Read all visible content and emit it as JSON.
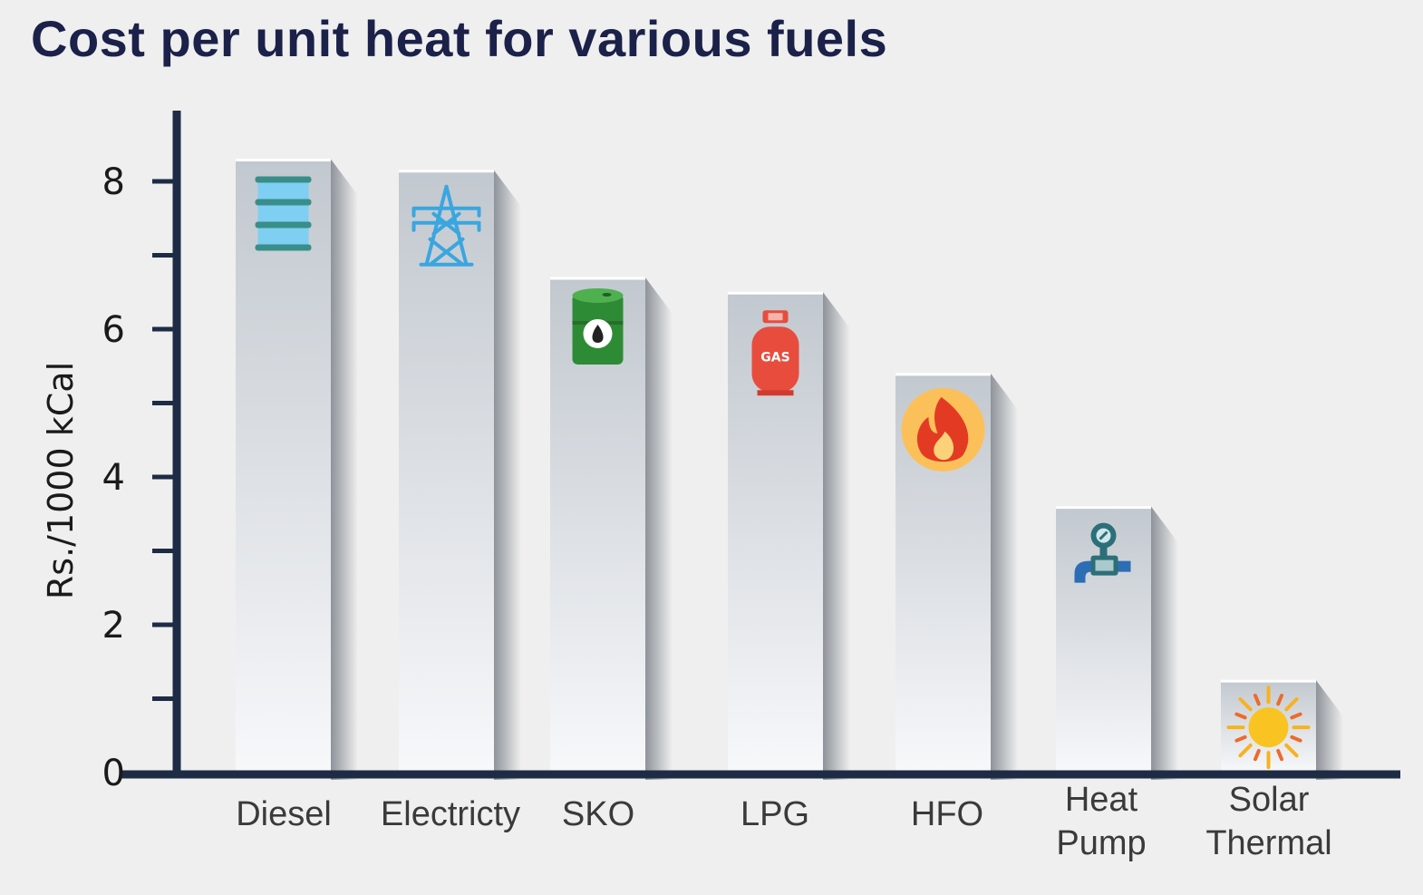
{
  "chart_data": {
    "type": "bar",
    "title": "Cost per unit heat for various fuels",
    "ylabel": "Rs./1000 kCal",
    "xlabel": "",
    "ylim": [
      0,
      9
    ],
    "yticks": [
      0,
      2,
      4,
      6,
      8
    ],
    "categories": [
      "Diesel",
      "Electricty",
      "SKO",
      "LPG",
      "HFO",
      "Heat Pump",
      "Solar Thermal"
    ],
    "category_lines": [
      [
        "Diesel"
      ],
      [
        "Electricty"
      ],
      [
        "SKO"
      ],
      [
        "LPG"
      ],
      [
        "HFO"
      ],
      [
        "Heat",
        "Pump"
      ],
      [
        "Solar",
        "Thermal"
      ]
    ],
    "values": [
      8.3,
      8.15,
      6.7,
      6.5,
      5.4,
      3.6,
      1.25
    ],
    "icons": [
      "oil-barrel-icon",
      "transmission-tower-icon",
      "fuel-drum-icon",
      "gas-cylinder-icon",
      "flame-icon",
      "heat-pump-icon",
      "sun-icon"
    ],
    "icon_text": {
      "gas-cylinder-icon": "GAS"
    },
    "colors": {
      "axis": "#1e2b45",
      "title": "#1b2149",
      "bar_top": "#c2c8cf",
      "bar_bottom": "#f7f8fa",
      "shadow": "#8a8f96"
    }
  }
}
